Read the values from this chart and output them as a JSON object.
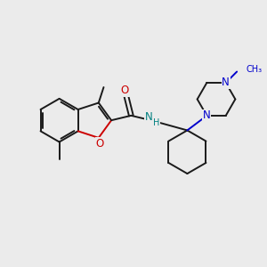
{
  "background_color": "#ebebeb",
  "bond_color": "#1a1a1a",
  "oxygen_color": "#cc0000",
  "nitrogen_color": "#0000cc",
  "nh_color": "#008080",
  "figsize": [
    3.0,
    3.0
  ],
  "dpi": 100,
  "xlim": [
    0,
    10
  ],
  "ylim": [
    0,
    10
  ]
}
